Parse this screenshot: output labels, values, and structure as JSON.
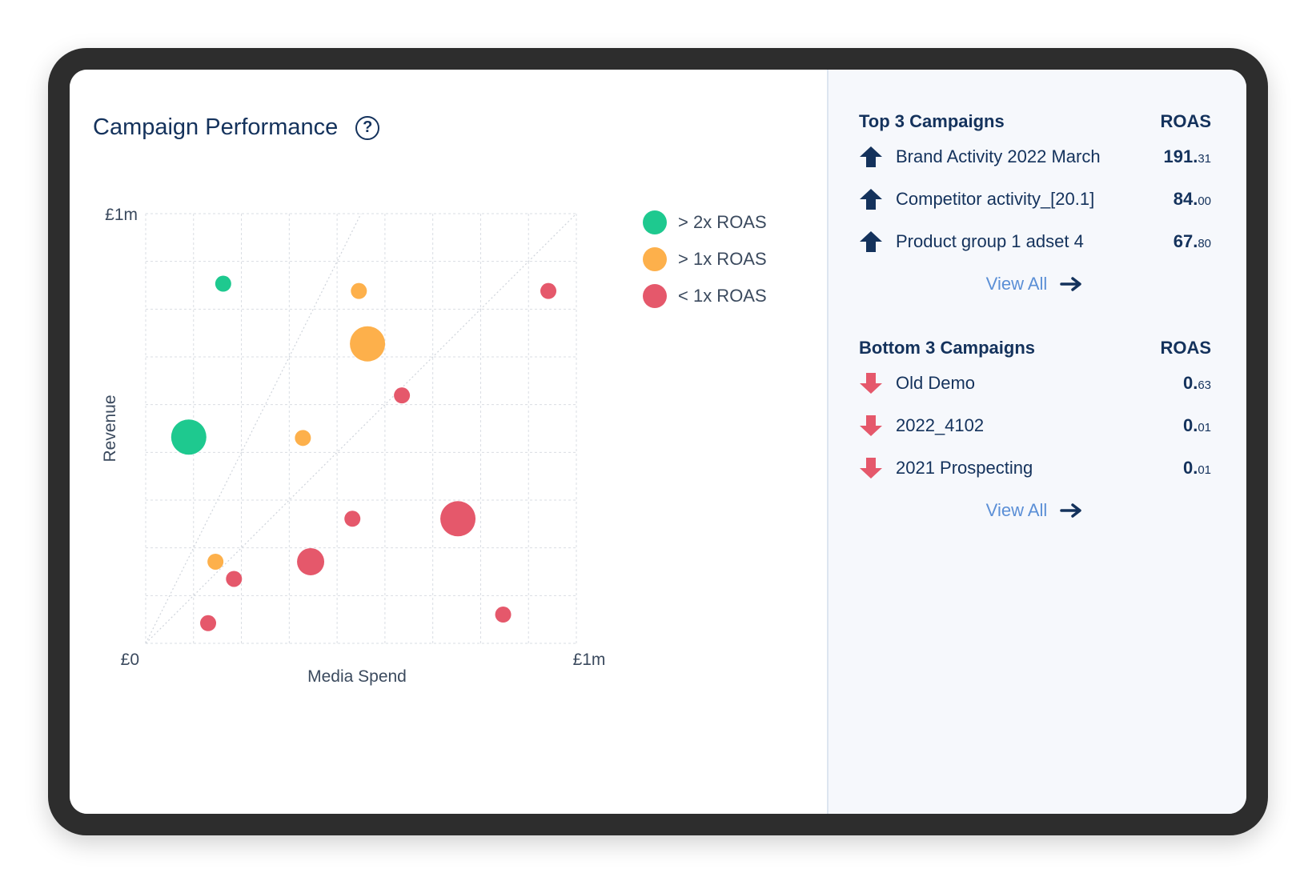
{
  "header": {
    "title": "Campaign Performance",
    "help_icon": "question-circle-icon"
  },
  "colors": {
    "green": "#1ec98f",
    "orange": "#fdb04b",
    "red": "#e5586b",
    "navy": "#14325c",
    "link": "#5b8fd6"
  },
  "legend": [
    {
      "label": "> 2x ROAS",
      "color": "#1ec98f"
    },
    {
      "label": "> 1x ROAS",
      "color": "#fdb04b"
    },
    {
      "label": "< 1x ROAS",
      "color": "#e5586b"
    }
  ],
  "chart_data": {
    "type": "scatter",
    "xlabel": "Media Spend",
    "ylabel": "Revenue",
    "x_ticks": [
      "£0",
      "£1m"
    ],
    "y_ticks": [
      "£1m"
    ],
    "xlim": [
      0,
      1000000
    ],
    "ylim": [
      0,
      1000000
    ],
    "grid": true,
    "reference_lines": [
      {
        "label": "2x ROAS",
        "slope": 2
      },
      {
        "label": "1x ROAS",
        "slope": 1
      }
    ],
    "legend_position": "top-right",
    "series": [
      {
        "name": "> 2x ROAS",
        "color": "#1ec98f",
        "points": [
          {
            "x": 180000,
            "y": 837000,
            "size": "small"
          },
          {
            "x": 100000,
            "y": 480000,
            "size": "large"
          }
        ]
      },
      {
        "name": "> 1x ROAS",
        "color": "#fdb04b",
        "points": [
          {
            "x": 495000,
            "y": 820000,
            "size": "small"
          },
          {
            "x": 515000,
            "y": 697000,
            "size": "large"
          },
          {
            "x": 365000,
            "y": 478000,
            "size": "small"
          },
          {
            "x": 162000,
            "y": 190000,
            "size": "small"
          }
        ]
      },
      {
        "name": "< 1x ROAS",
        "color": "#e5586b",
        "points": [
          {
            "x": 935000,
            "y": 820000,
            "size": "small"
          },
          {
            "x": 595000,
            "y": 577000,
            "size": "small"
          },
          {
            "x": 480000,
            "y": 290000,
            "size": "small"
          },
          {
            "x": 725000,
            "y": 290000,
            "size": "large"
          },
          {
            "x": 383000,
            "y": 190000,
            "size": "medium"
          },
          {
            "x": 205000,
            "y": 150000,
            "size": "small"
          },
          {
            "x": 145000,
            "y": 47000,
            "size": "small"
          },
          {
            "x": 830000,
            "y": 67000,
            "size": "small"
          }
        ]
      }
    ]
  },
  "top": {
    "title": "Top 3 Campaigns",
    "col": "ROAS",
    "rows": [
      {
        "name": "Brand Activity 2022 March",
        "int": "191.",
        "dec": "31"
      },
      {
        "name": "Competitor activity_[20.1]",
        "int": "84.",
        "dec": "00"
      },
      {
        "name": "Product group 1 adset 4",
        "int": "67.",
        "dec": "80"
      }
    ],
    "view_all": "View All"
  },
  "bottom": {
    "title": "Bottom 3 Campaigns",
    "col": "ROAS",
    "rows": [
      {
        "name": "Old Demo",
        "int": "0.",
        "dec": "63"
      },
      {
        "name": "2022_4102",
        "int": "0.",
        "dec": "01"
      },
      {
        "name": "2021 Prospecting",
        "int": "0.",
        "dec": "01"
      }
    ],
    "view_all": "View All"
  }
}
